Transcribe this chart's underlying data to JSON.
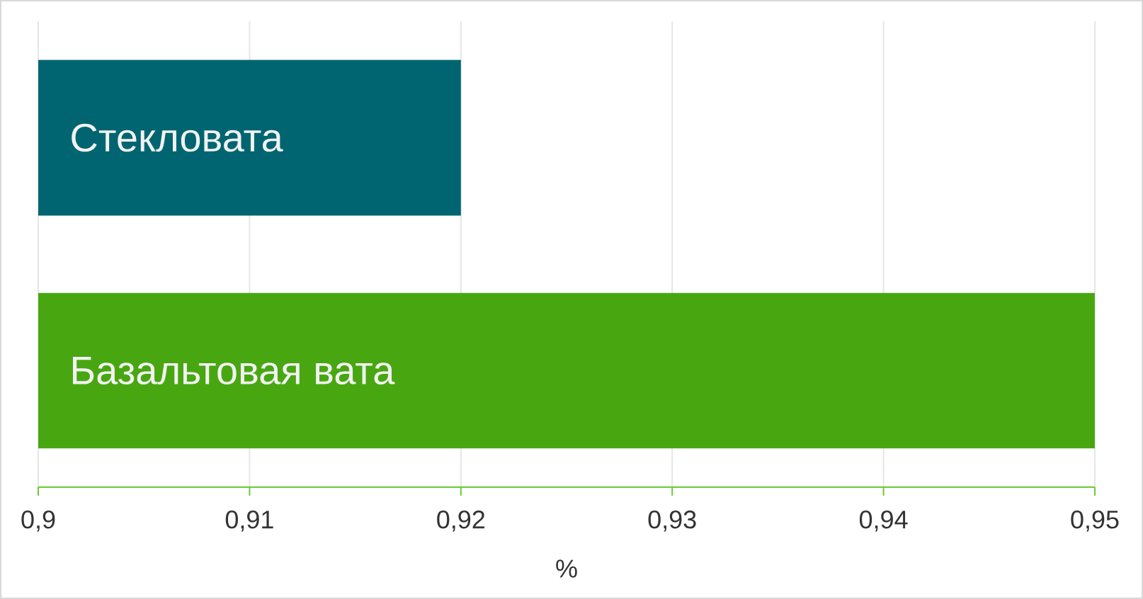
{
  "chart_data": {
    "type": "bar",
    "orientation": "horizontal",
    "categories": [
      "Стекловата",
      "Базальтовая вата"
    ],
    "values": [
      0.92,
      0.95
    ],
    "colors": [
      "#006570",
      "#48a711"
    ],
    "xlim": [
      0.9,
      0.95
    ],
    "xticks": [
      {
        "value": 0.9,
        "label": "0,9"
      },
      {
        "value": 0.91,
        "label": "0,91"
      },
      {
        "value": 0.92,
        "label": "0,92"
      },
      {
        "value": 0.93,
        "label": "0,93"
      },
      {
        "value": 0.94,
        "label": "0,94"
      },
      {
        "value": 0.95,
        "label": "0,95"
      }
    ],
    "xlabel": "%",
    "grid": "x"
  }
}
